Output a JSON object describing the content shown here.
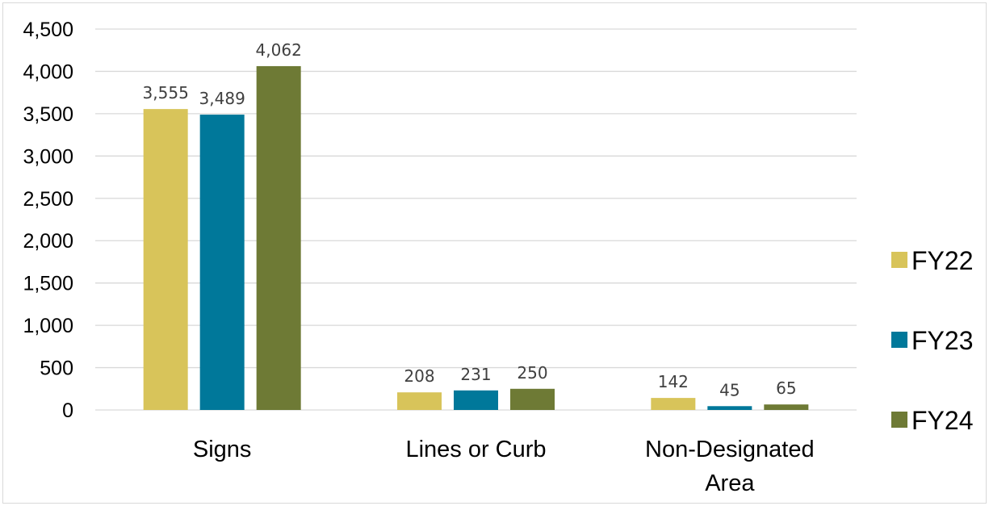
{
  "chart_data": {
    "type": "bar",
    "categories": [
      [
        "Signs"
      ],
      [
        "Lines or Curb"
      ],
      [
        "Non-Designated",
        "Area"
      ]
    ],
    "series": [
      {
        "name": "FY22",
        "color": "#d8c45a",
        "values": [
          3555,
          208,
          142
        ],
        "labels": [
          "3,555",
          "208",
          "142"
        ]
      },
      {
        "name": "FY23",
        "color": "#00789a",
        "values": [
          3489,
          231,
          45
        ],
        "labels": [
          "3,489",
          "231",
          "45"
        ]
      },
      {
        "name": "FY24",
        "color": "#6e7a35",
        "values": [
          4062,
          250,
          65
        ],
        "labels": [
          "4,062",
          "250",
          "65"
        ]
      }
    ],
    "ylim": [
      0,
      4500
    ],
    "yticks": [
      0,
      500,
      1000,
      1500,
      2000,
      2500,
      3000,
      3500,
      4000,
      4500
    ],
    "ytick_labels": [
      "0",
      "500",
      "1,000",
      "1,500",
      "2,000",
      "2,500",
      "3,000",
      "3,500",
      "4,000",
      "4,500"
    ],
    "grid": true,
    "legend_position": "right",
    "gridline_color": "#d9d9d9"
  }
}
